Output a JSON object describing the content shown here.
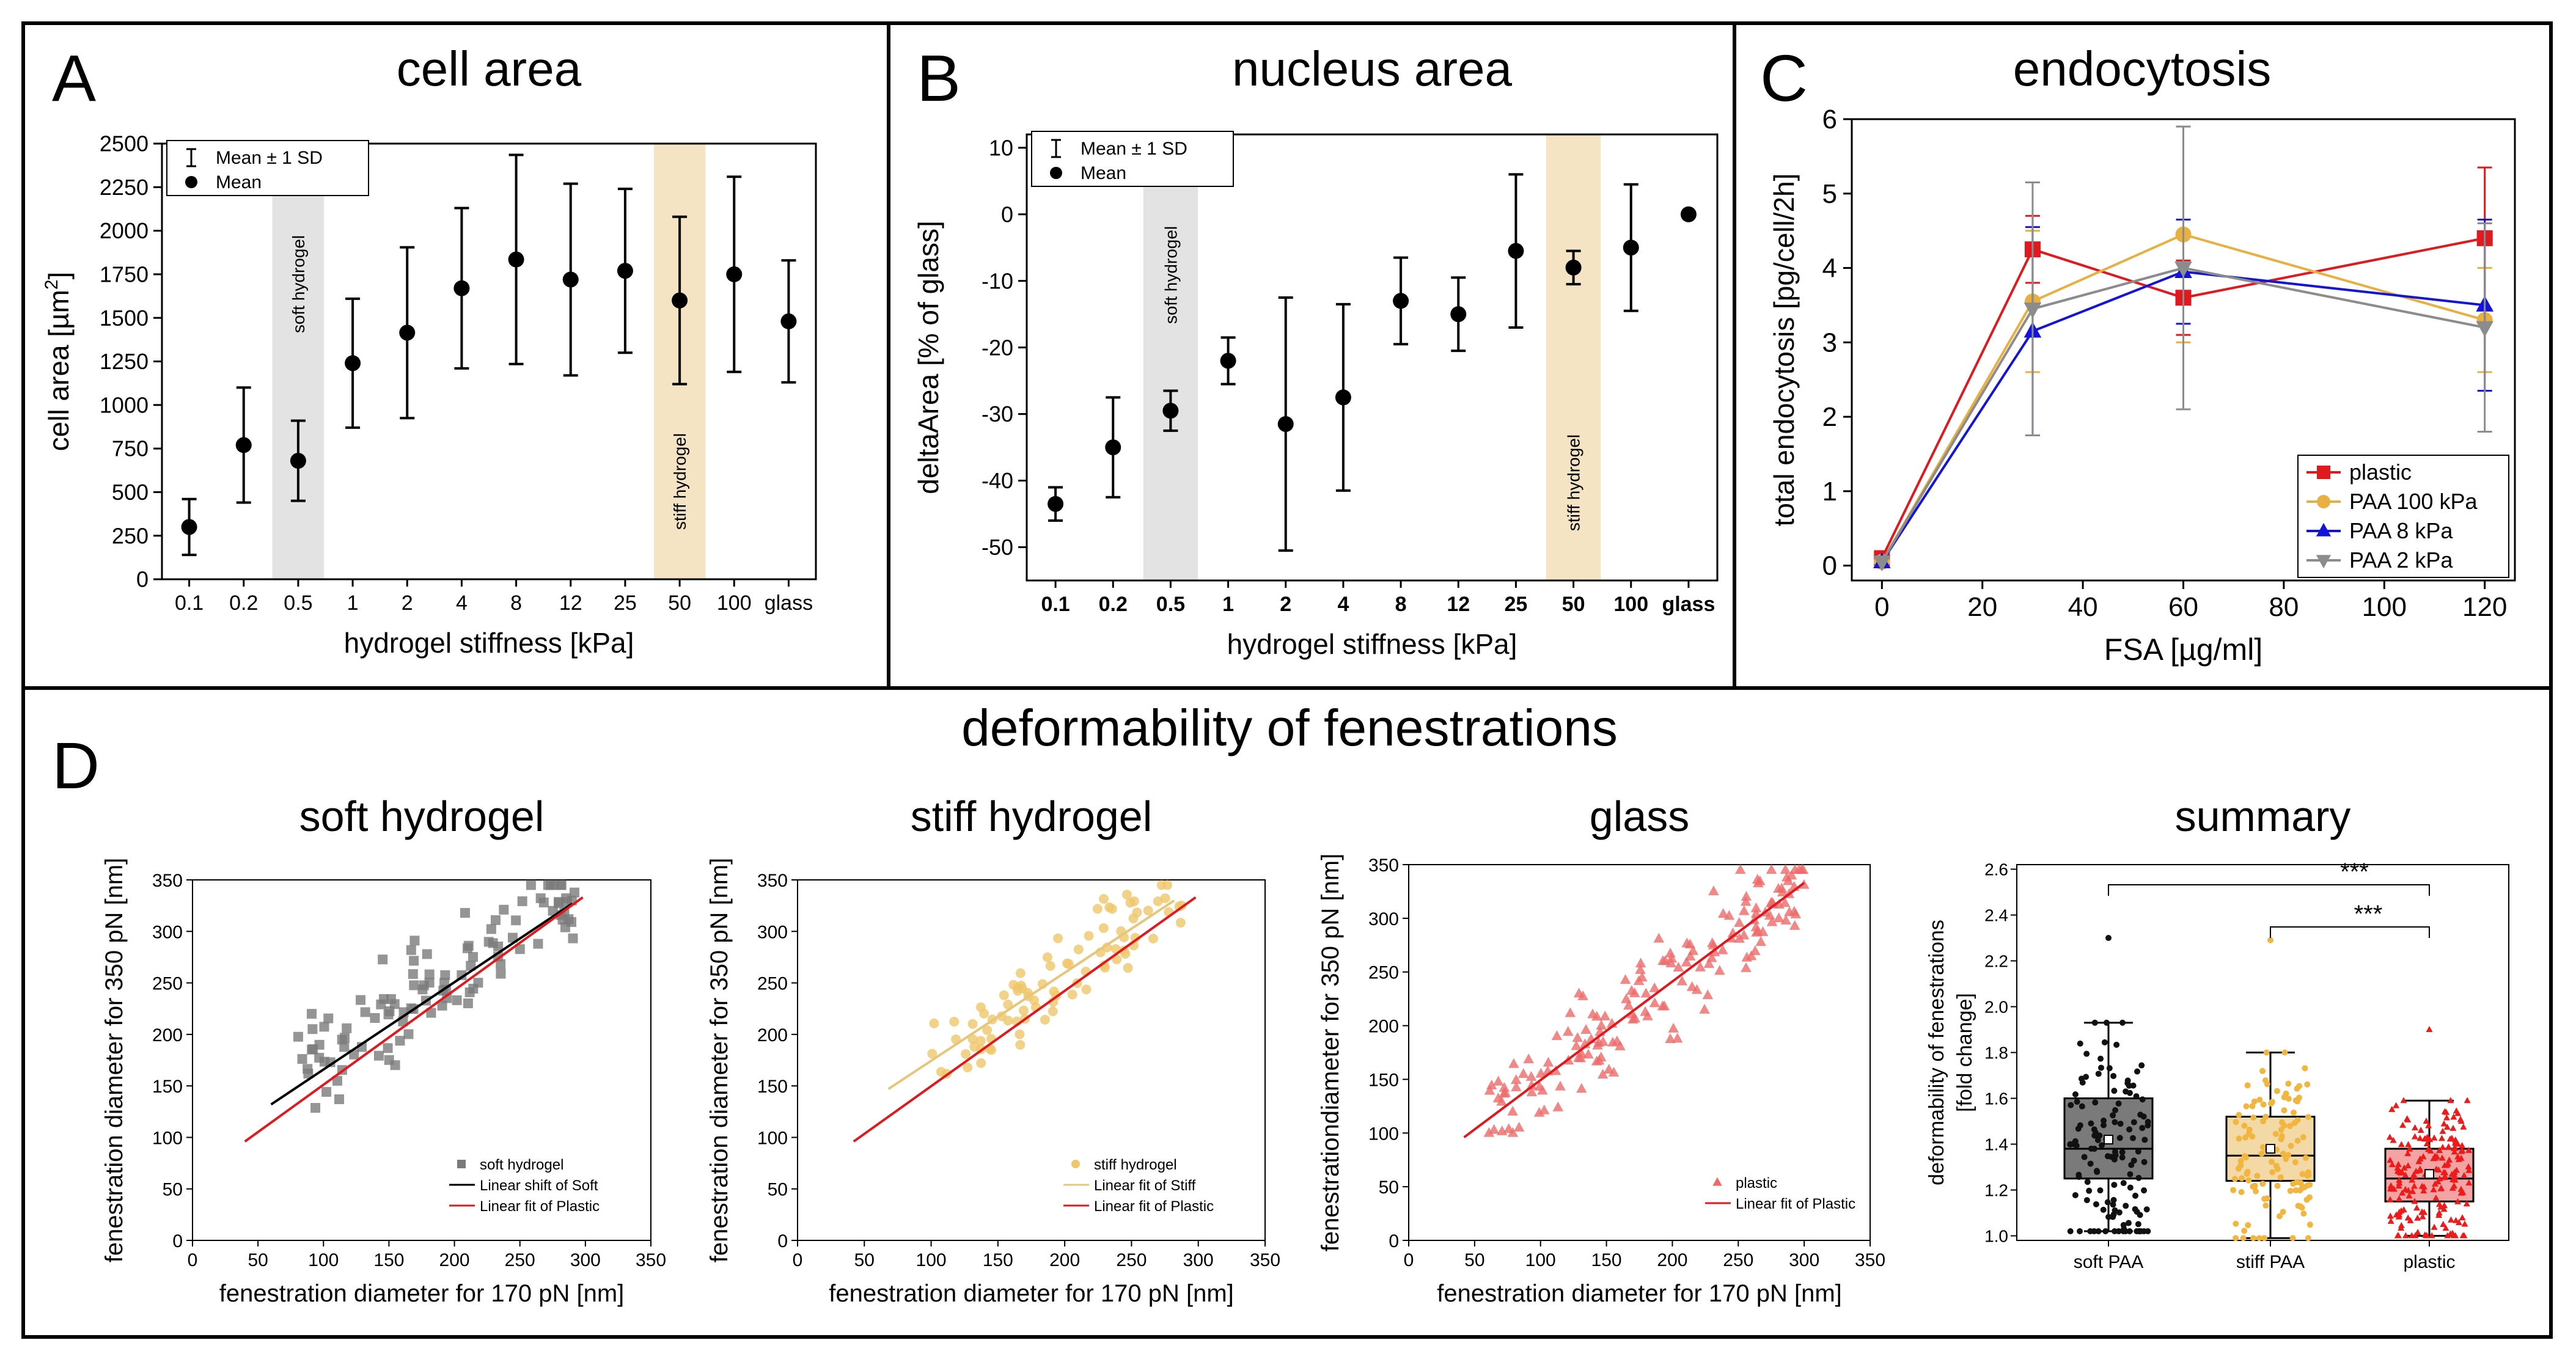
{
  "colors": {
    "soft_band": "#e3e3e3",
    "stiff_band": "#f5e4c3",
    "plastic": "#e0191e",
    "paa100": "#e8b040",
    "paa8": "#1414d8",
    "paa2": "#8c8c8c",
    "soft_scatter": "#7a7a7a",
    "stiff_scatter": "#efc76a",
    "glass_scatter": "#ee6a6a",
    "soft_fit": "#000000",
    "stiff_fit": "#e6c77a",
    "plastic_fit": "#e0191e"
  },
  "chart_data": [
    {
      "id": "A",
      "panel_letter": "A",
      "type": "scatter",
      "title": "cell area",
      "xlabel": "hydrogel stiffness [kPa]",
      "ylabel": "cell area [µm²]",
      "ylabel_unit_sup": "2",
      "categories": [
        "0.1",
        "0.2",
        "0.5",
        "1",
        "2",
        "4",
        "8",
        "12",
        "25",
        "50",
        "100",
        "glass"
      ],
      "mean": [
        300,
        770,
        680,
        1240,
        1415,
        1670,
        1835,
        1720,
        1770,
        1600,
        1750,
        1480
      ],
      "sd": [
        160,
        330,
        230,
        370,
        490,
        460,
        600,
        550,
        470,
        480,
        560,
        350
      ],
      "ylim": [
        0,
        2500
      ],
      "yticks": [
        0,
        250,
        500,
        750,
        1000,
        1250,
        1500,
        1750,
        2000,
        2250,
        2500
      ],
      "legend": [
        "Mean ± 1 SD",
        "Mean"
      ],
      "band_labels": [
        "soft hydrogel",
        "stiff hydrogel"
      ]
    },
    {
      "id": "B",
      "panel_letter": "B",
      "type": "scatter",
      "title": "nucleus area",
      "xlabel": "hydrogel stiffness [kPa]",
      "ylabel": "deltaArea [% of glass]",
      "categories": [
        "0.1",
        "0.2",
        "0.5",
        "1",
        "2",
        "4",
        "8",
        "12",
        "25",
        "50",
        "100",
        "glass"
      ],
      "mean": [
        -43.5,
        -35,
        -29.5,
        -22,
        -31.5,
        -27.5,
        -13,
        -15,
        -5.5,
        -8,
        -5,
        0
      ],
      "sd": [
        2.5,
        7.5,
        3,
        3.5,
        19,
        14,
        6.5,
        5.5,
        11.5,
        2.5,
        9.5,
        0
      ],
      "ylim": [
        -55,
        12
      ],
      "yticks": [
        -50,
        -40,
        -30,
        -20,
        -10,
        0,
        10
      ],
      "legend": [
        "Mean ± 1 SD",
        "Mean"
      ],
      "band_labels": [
        "soft hydrogel",
        "stiff hydrogel"
      ]
    },
    {
      "id": "C",
      "panel_letter": "C",
      "type": "line",
      "title": "endocytosis",
      "xlabel": "FSA [µg/ml]",
      "ylabel": "total endocytosis [pg/cell/2h]",
      "x": [
        0,
        30,
        60,
        120
      ],
      "xlim": [
        -6,
        126
      ],
      "ylim": [
        -0.2,
        6
      ],
      "xticks": [
        0,
        20,
        40,
        60,
        80,
        100,
        120
      ],
      "yticks": [
        0,
        1,
        2,
        3,
        4,
        5,
        6
      ],
      "series": [
        {
          "name": "plastic",
          "marker": "square",
          "values": [
            0.1,
            4.25,
            3.6,
            4.4
          ],
          "err": [
            0.05,
            0.45,
            0.5,
            0.95
          ]
        },
        {
          "name": "PAA 100 kPa",
          "marker": "circle",
          "values": [
            0.05,
            3.55,
            4.45,
            3.3
          ],
          "err": [
            0.05,
            0.95,
            1.45,
            0.7
          ]
        },
        {
          "name": "PAA 8 kPa",
          "marker": "triangle",
          "values": [
            0.05,
            3.15,
            3.95,
            3.5
          ],
          "err": [
            0.05,
            1.4,
            0.7,
            1.15
          ]
        },
        {
          "name": "PAA 2 kPa",
          "marker": "triangle-down",
          "values": [
            0.05,
            3.45,
            4.0,
            3.2
          ],
          "err": [
            0.05,
            1.7,
            1.9,
            1.4
          ]
        }
      ]
    },
    {
      "id": "D1",
      "type": "scatter",
      "title": "soft hydrogel",
      "xlabel": "fenestration diameter for 170 pN [nm]",
      "ylabel": "fenestration diameter for 350 pN [nm]",
      "xlim": [
        0,
        350
      ],
      "ylim": [
        0,
        350
      ],
      "xticks": [
        0,
        50,
        100,
        150,
        200,
        250,
        300,
        350
      ],
      "yticks": [
        0,
        50,
        100,
        150,
        200,
        250,
        300,
        350
      ],
      "n_points": 110,
      "x_range": [
        80,
        295
      ],
      "sample_fit": {
        "slope": 0.835,
        "intercept": 97,
        "spread": 26,
        "from": 60,
        "to": 290
      },
      "fit_lines": [
        {
          "name": "Linear shift of Soft",
          "x": [
            60,
            290
          ],
          "y": [
            132,
            327
          ]
        },
        {
          "name": "Linear fit of Plastic",
          "x": [
            40,
            298
          ],
          "y": [
            96,
            333
          ]
        }
      ],
      "legend": [
        "soft hydrogel",
        "Linear shift of Soft",
        "Linear fit of Plastic"
      ]
    },
    {
      "id": "D2",
      "type": "scatter",
      "title": "stiff hydrogel",
      "xlabel": "fenestration diameter for 170 pN [nm]",
      "ylabel": "fenestration diameter for 350 pN [nm]",
      "xlim": [
        0,
        350
      ],
      "ylim": [
        0,
        350
      ],
      "xticks": [
        0,
        50,
        100,
        150,
        200,
        250,
        300,
        350
      ],
      "yticks": [
        0,
        50,
        100,
        150,
        200,
        250,
        300,
        350
      ],
      "n_points": 90,
      "x_range": [
        100,
        290
      ],
      "sample_fit": {
        "slope": 0.86,
        "intercept": 88,
        "spread": 24,
        "from": 68,
        "to": 282
      },
      "fit_lines": [
        {
          "name": "Linear fit of Stiff",
          "x": [
            68,
            282
          ],
          "y": [
            147,
            330
          ]
        },
        {
          "name": "Linear fit of Plastic",
          "x": [
            42,
            298
          ],
          "y": [
            96,
            333
          ]
        }
      ],
      "legend": [
        "stiff hydrogel",
        "Linear fit of Stiff",
        "Linear fit of Plastic"
      ]
    },
    {
      "id": "D3",
      "type": "scatter",
      "title": "glass",
      "xlabel": "fenestration diameter for 170 pN [nm]",
      "ylabel": "fenestrationdiameter for 350 pN [nm]",
      "xlim": [
        0,
        350
      ],
      "ylim": [
        0,
        350
      ],
      "xticks": [
        0,
        50,
        100,
        150,
        200,
        250,
        300,
        350
      ],
      "yticks": [
        0,
        50,
        100,
        150,
        200,
        250,
        300,
        350
      ],
      "n_points": 170,
      "x_range": [
        60,
        300
      ],
      "sample_fit": {
        "slope": 0.92,
        "intercept": 57,
        "spread": 22,
        "from": 42,
        "to": 300
      },
      "fit_lines": [
        {
          "name": "Linear fit of Plastic",
          "x": [
            42,
            300
          ],
          "y": [
            96,
            333
          ]
        }
      ],
      "legend": [
        "plastic",
        "Linear fit of Plastic"
      ]
    },
    {
      "id": "D4",
      "type": "box",
      "title": "summary",
      "ylabel": "deformability of fenestrations [fold change]",
      "ylim": [
        0.98,
        2.62
      ],
      "yticks": [
        1.0,
        1.2,
        1.4,
        1.6,
        1.8,
        2.0,
        2.2,
        2.4,
        2.6
      ],
      "groups": [
        {
          "name": "soft PAA",
          "q1": 1.25,
          "median": 1.38,
          "q3": 1.6,
          "whisker_low": 1.02,
          "whisker_high": 1.93,
          "mean": 1.42,
          "n": 130,
          "outlier": 2.3
        },
        {
          "name": "stiff PAA",
          "q1": 1.24,
          "median": 1.35,
          "q3": 1.52,
          "whisker_low": 0.99,
          "whisker_high": 1.8,
          "mean": 1.38,
          "n": 120,
          "outlier": 2.29
        },
        {
          "name": "plastic",
          "q1": 1.15,
          "median": 1.25,
          "q3": 1.38,
          "whisker_low": 1.0,
          "whisker_high": 1.59,
          "mean": 1.27,
          "n": 190,
          "outlier": 1.9
        }
      ],
      "significance": [
        {
          "from": 0,
          "to": 2,
          "label": "***"
        },
        {
          "from": 1,
          "to": 2,
          "label": "***"
        }
      ]
    }
  ],
  "panel_D": {
    "letter": "D",
    "heading": "deformability of fenestrations"
  }
}
